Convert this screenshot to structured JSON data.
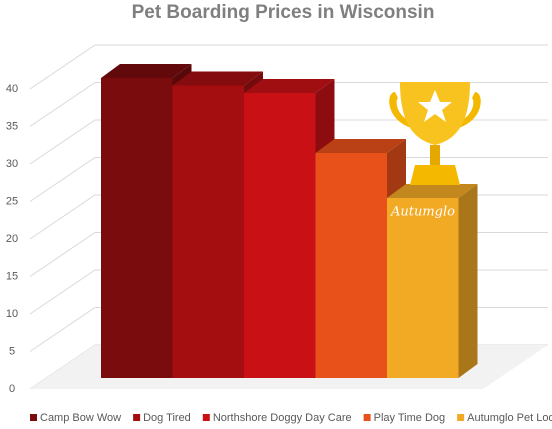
{
  "chart_data": {
    "type": "bar3d",
    "title": "Pet Boarding Prices in Wisconsin",
    "categories": [
      "Camp Bow Wow",
      "Dog Tired",
      "Northshore Doggy Day Care",
      "Play Time Dog",
      "Autumglo Pet Lodge"
    ],
    "values": [
      40,
      39,
      38,
      30,
      24
    ],
    "colors": [
      "#7b0c0e",
      "#a50e11",
      "#c91115",
      "#e8511a",
      "#f2a924"
    ],
    "ylim": [
      0,
      40
    ],
    "yticks": [
      0,
      5,
      10,
      15,
      20,
      25,
      30,
      35,
      40
    ],
    "grid": true,
    "annotation": "Autumglo",
    "legend": "bottom"
  }
}
